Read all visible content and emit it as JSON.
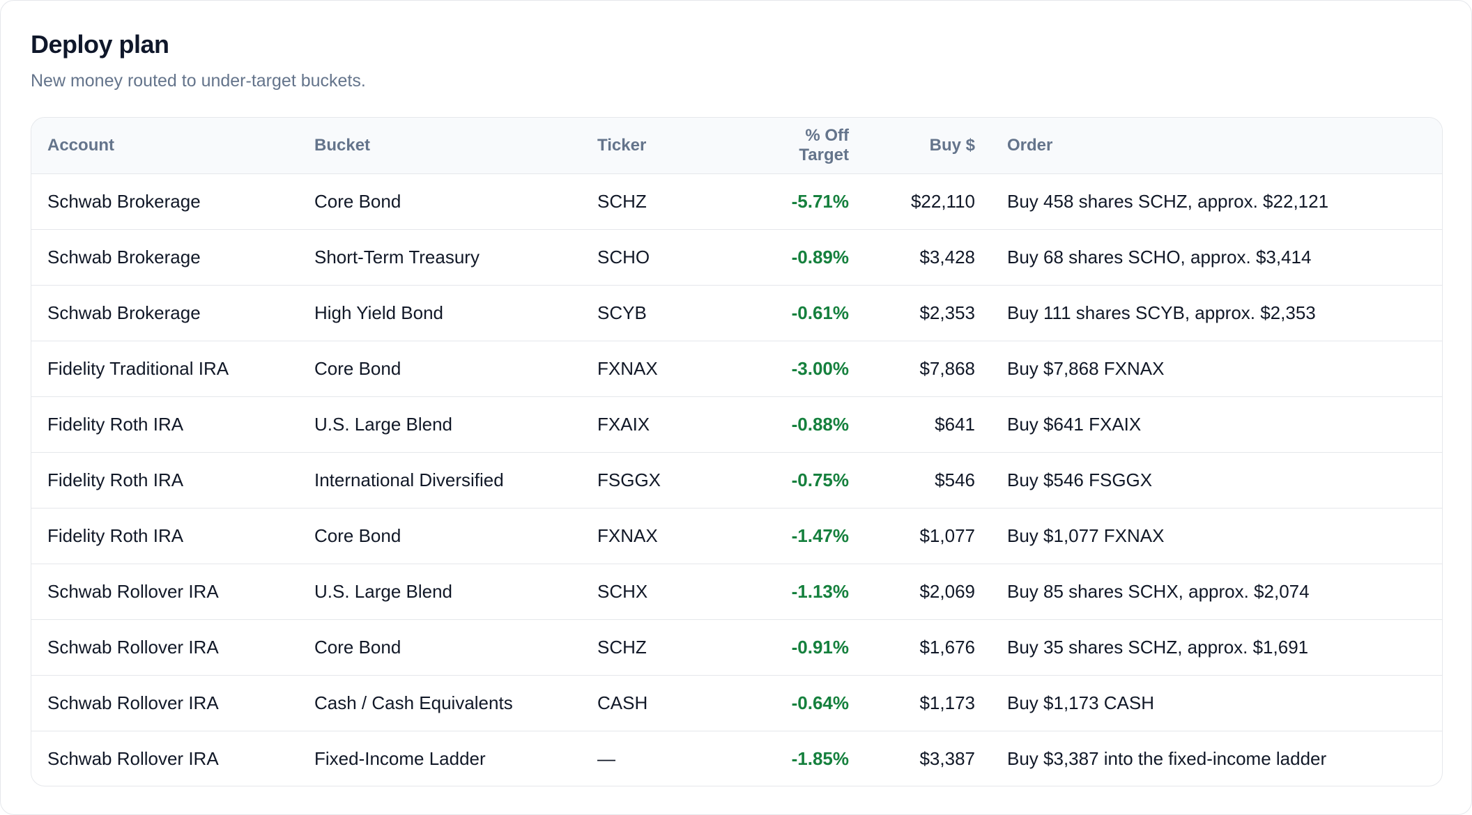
{
  "header": {
    "title": "Deploy plan",
    "subtitle": "New money routed to under-target buckets."
  },
  "table": {
    "columns": [
      "Account",
      "Bucket",
      "Ticker",
      "% Off Target",
      "Buy $",
      "Order"
    ],
    "rows": [
      [
        "Schwab Brokerage",
        "Core Bond",
        "SCHZ",
        "-5.71%",
        "$22,110",
        "Buy 458 shares SCHZ, approx. $22,121"
      ],
      [
        "Schwab Brokerage",
        "Short-Term Treasury",
        "SCHO",
        "-0.89%",
        "$3,428",
        "Buy 68 shares SCHO, approx. $3,414"
      ],
      [
        "Schwab Brokerage",
        "High Yield Bond",
        "SCYB",
        "-0.61%",
        "$2,353",
        "Buy 111 shares SCYB, approx. $2,353"
      ],
      [
        "Fidelity Traditional IRA",
        "Core Bond",
        "FXNAX",
        "-3.00%",
        "$7,868",
        "Buy $7,868 FXNAX"
      ],
      [
        "Fidelity Roth IRA",
        "U.S. Large Blend",
        "FXAIX",
        "-0.88%",
        "$641",
        "Buy $641 FXAIX"
      ],
      [
        "Fidelity Roth IRA",
        "International Diversified",
        "FSGGX",
        "-0.75%",
        "$546",
        "Buy $546 FSGGX"
      ],
      [
        "Fidelity Roth IRA",
        "Core Bond",
        "FXNAX",
        "-1.47%",
        "$1,077",
        "Buy $1,077 FXNAX"
      ],
      [
        "Schwab Rollover IRA",
        "U.S. Large Blend",
        "SCHX",
        "-1.13%",
        "$2,069",
        "Buy 85 shares SCHX, approx. $2,074"
      ],
      [
        "Schwab Rollover IRA",
        "Core Bond",
        "SCHZ",
        "-0.91%",
        "$1,676",
        "Buy 35 shares SCHZ, approx. $1,691"
      ],
      [
        "Schwab Rollover IRA",
        "Cash / Cash Equivalents",
        "CASH",
        "-0.64%",
        "$1,173",
        "Buy $1,173 CASH"
      ],
      [
        "Schwab Rollover IRA",
        "Fixed-Income Ladder",
        "—",
        "-1.85%",
        "$3,387",
        "Buy $3,387 into the fixed-income ladder"
      ]
    ]
  }
}
